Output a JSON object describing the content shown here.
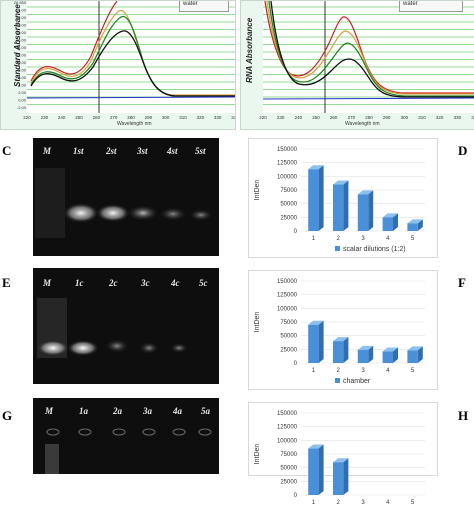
{
  "spectra": [
    {
      "ylabel": "Standard Absorbance",
      "xlabel": "Wavelength nm",
      "legend": "water",
      "yticks": [
        "26.550",
        "24.00",
        "22.00",
        "20.00",
        "18.00",
        "16.00",
        "14.00",
        "12.00",
        "10.00",
        "8.00",
        "6.00",
        "4.00",
        "2.00",
        "0.00",
        "-2.00"
      ],
      "xticks": [
        "220",
        "230",
        "240",
        "250",
        "260",
        "270",
        "280",
        "290",
        "300",
        "310",
        "320",
        "330",
        "340"
      ]
    },
    {
      "ylabel": "RNA Absorbance",
      "xlabel": "Wavelength nm",
      "legend": "water",
      "yticks": [
        "",
        "",
        "",
        "",
        "",
        "",
        "",
        "",
        "",
        "",
        "",
        "",
        "",
        "",
        ""
      ],
      "xticks": [
        "220",
        "230",
        "240",
        "250",
        "260",
        "270",
        "280",
        "290",
        "300",
        "310",
        "320",
        "330",
        "340"
      ]
    }
  ],
  "gels": [
    {
      "letter": "C",
      "lanes": [
        "M",
        "1st",
        "2st",
        "3st",
        "4st",
        "5st"
      ]
    },
    {
      "letter": "E",
      "lanes": [
        "M",
        "1c",
        "2c",
        "3c",
        "4c",
        "5c"
      ]
    },
    {
      "letter": "G",
      "lanes": [
        "M",
        "1a",
        "2a",
        "3a",
        "4a",
        "5a"
      ]
    }
  ],
  "letters_right": [
    "D",
    "F",
    "H"
  ],
  "chart_data": [
    {
      "type": "bar",
      "panel": "D",
      "categories": [
        "1",
        "2",
        "3",
        "4",
        "5"
      ],
      "values": [
        113000,
        85000,
        67000,
        25000,
        14000
      ],
      "ylabel": "IntDen",
      "legend": "scalar dilutions (1:2)",
      "yticks": [
        "0",
        "25000",
        "50000",
        "75000",
        "100000",
        "125000",
        "150000"
      ],
      "ylim": [
        0,
        150000
      ]
    },
    {
      "type": "bar",
      "panel": "F",
      "categories": [
        "1",
        "2",
        "3",
        "4",
        "5"
      ],
      "values": [
        70000,
        40000,
        24000,
        21000,
        23000
      ],
      "ylabel": "IntDen",
      "legend": "chamber",
      "yticks": [
        "0",
        "25000",
        "50000",
        "75000",
        "100000",
        "125000",
        "150000"
      ],
      "ylim": [
        0,
        150000
      ]
    },
    {
      "type": "bar",
      "panel": "H",
      "categories": [
        "1",
        "2",
        "3",
        "4",
        "5"
      ],
      "values": [
        85000,
        60000,
        0,
        0,
        0
      ],
      "ylabel": "IntDen",
      "legend": "",
      "yticks": [
        "0",
        "25000",
        "50000",
        "75000",
        "100000",
        "125000",
        "150000"
      ],
      "ylim": [
        0,
        150000
      ]
    }
  ],
  "colors": {
    "bar": "#4a90d9",
    "bar_side": "#2f6fb0",
    "bar_top": "#8cc0ee",
    "gel_bg": "#0e0e0e",
    "grid_green": "#6fcf6f"
  }
}
